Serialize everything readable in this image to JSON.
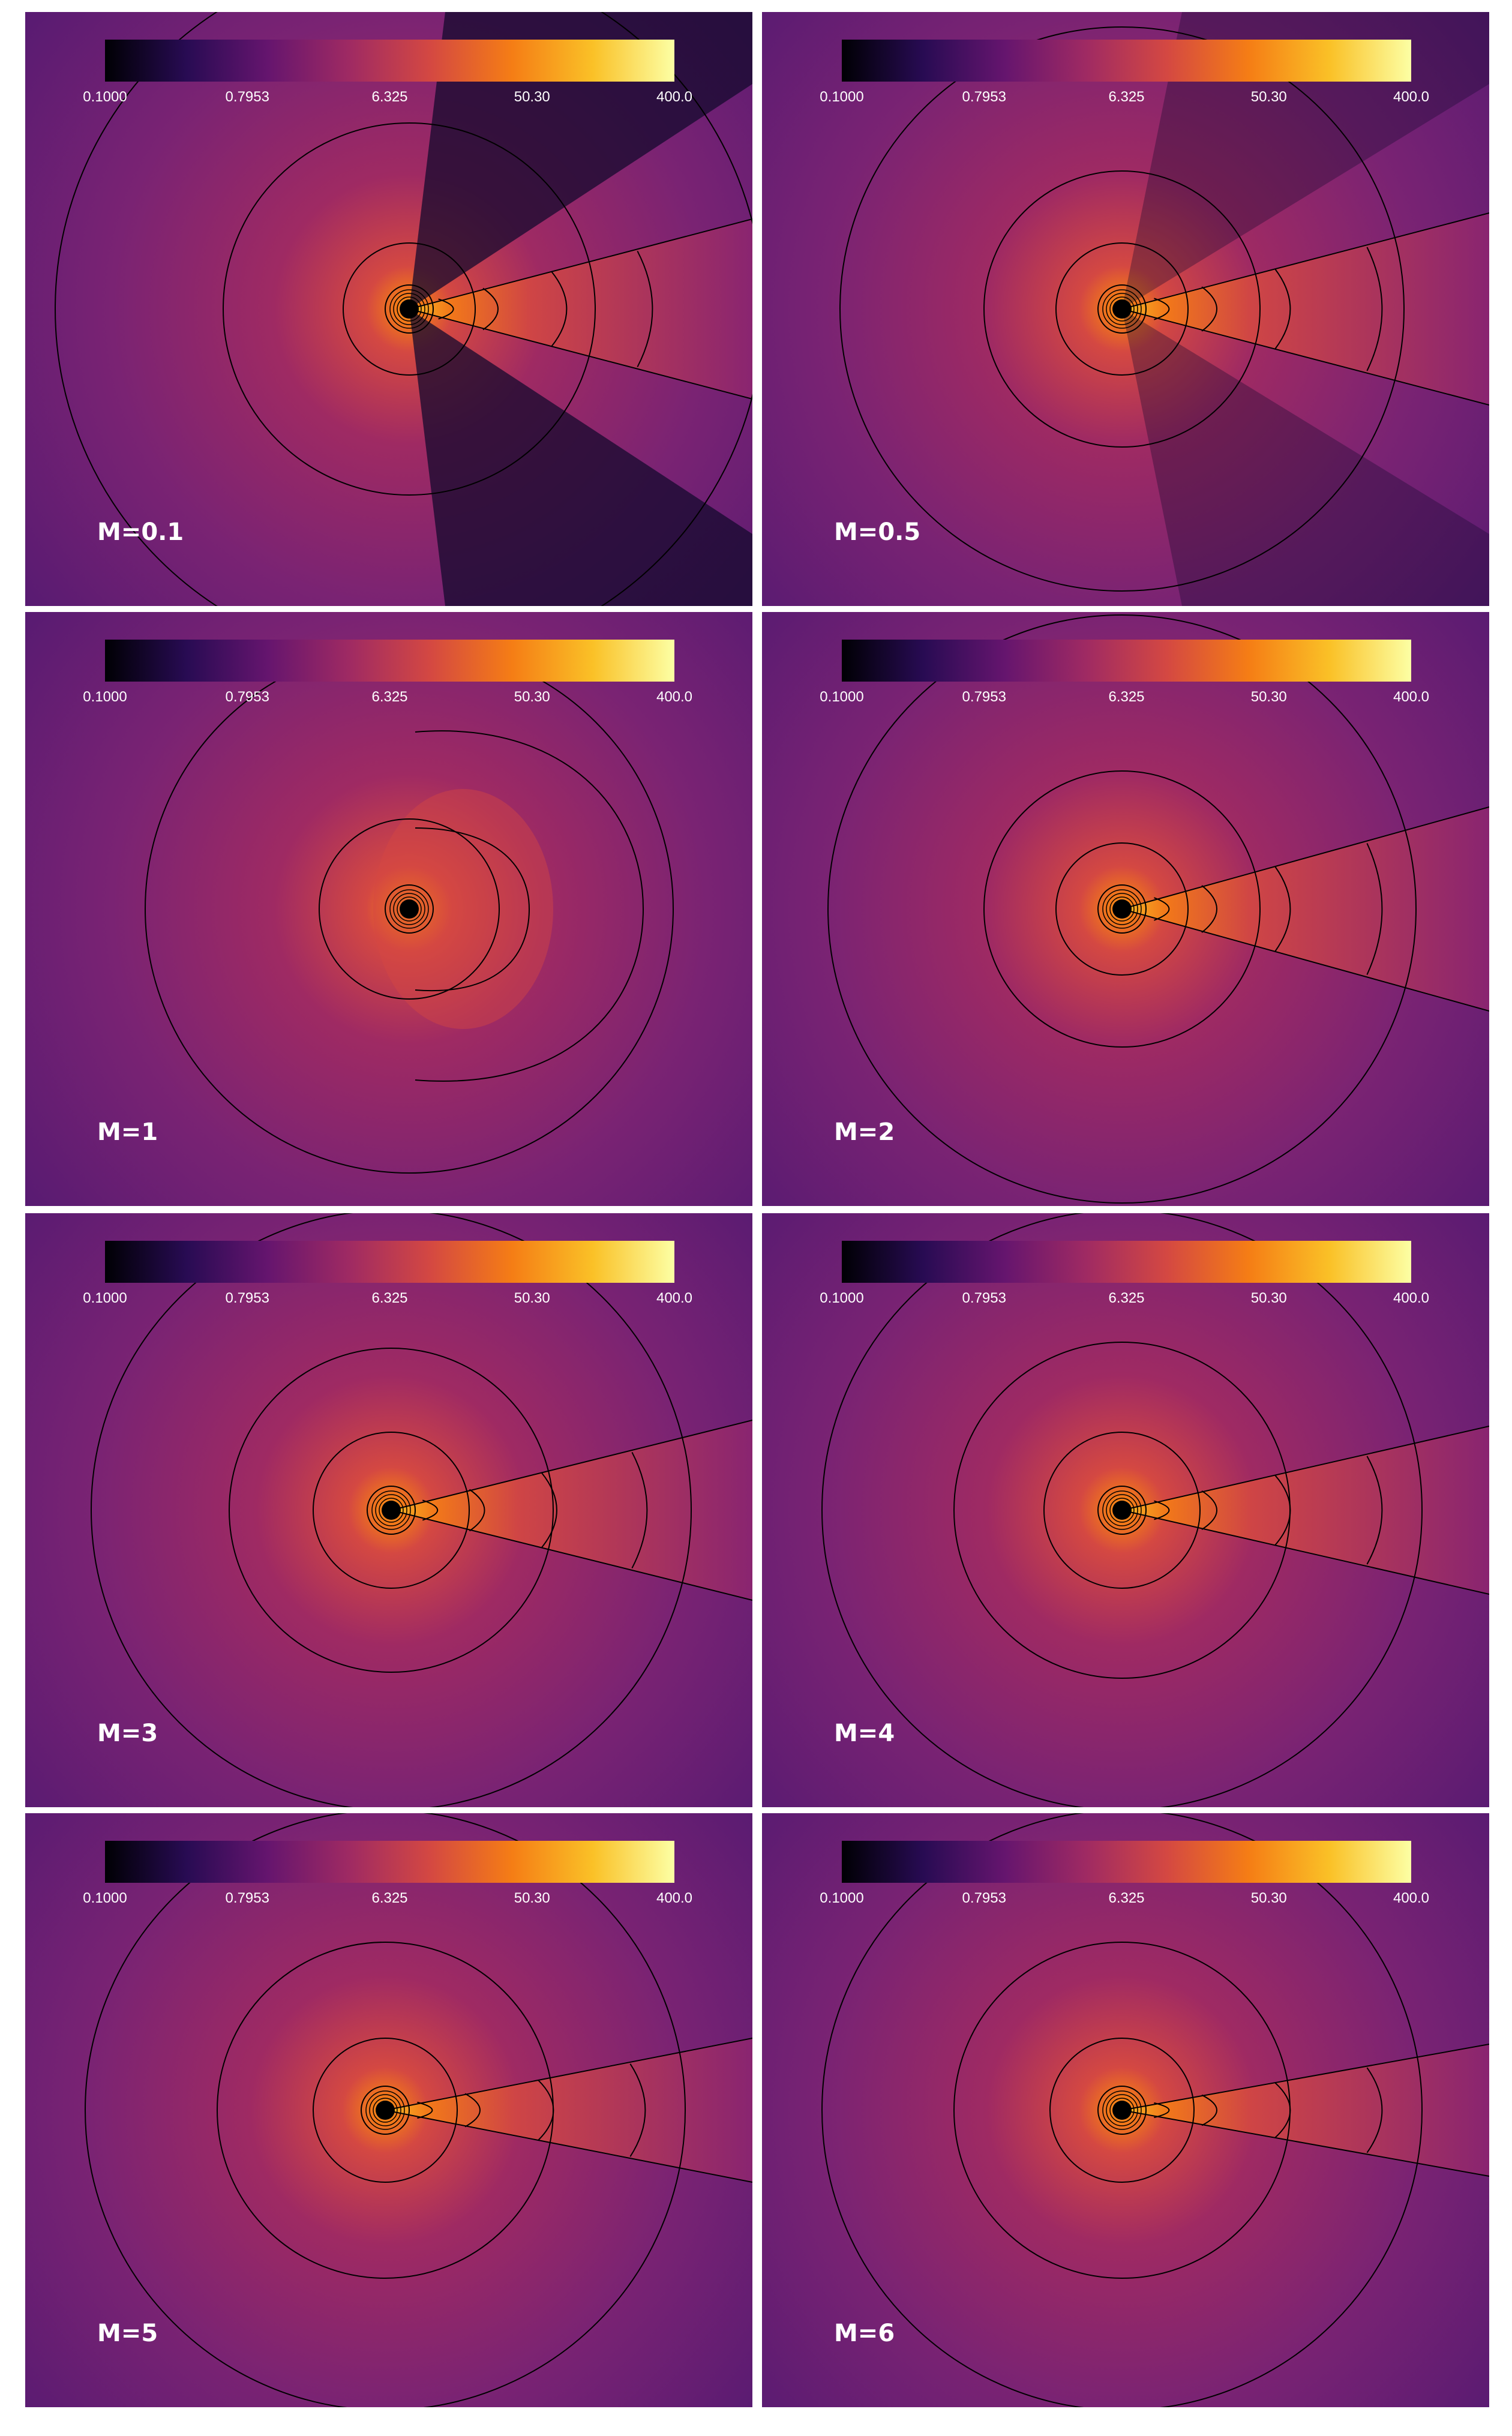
{
  "colorbar": {
    "ticks": [
      "0.1000",
      "0.7953",
      "6.325",
      "50.30",
      "400.0"
    ],
    "colormap": [
      "#000004",
      "#280b53",
      "#65156e",
      "#9f2a63",
      "#d44842",
      "#f57d15",
      "#fac127",
      "#fcffa4"
    ]
  },
  "panels": [
    {
      "label": "M=0.1"
    },
    {
      "label": "M=0.5"
    },
    {
      "label": "M=1"
    },
    {
      "label": "M=2"
    },
    {
      "label": "M=3"
    },
    {
      "label": "M=4"
    },
    {
      "label": "M=5"
    },
    {
      "label": "M=6"
    }
  ]
}
